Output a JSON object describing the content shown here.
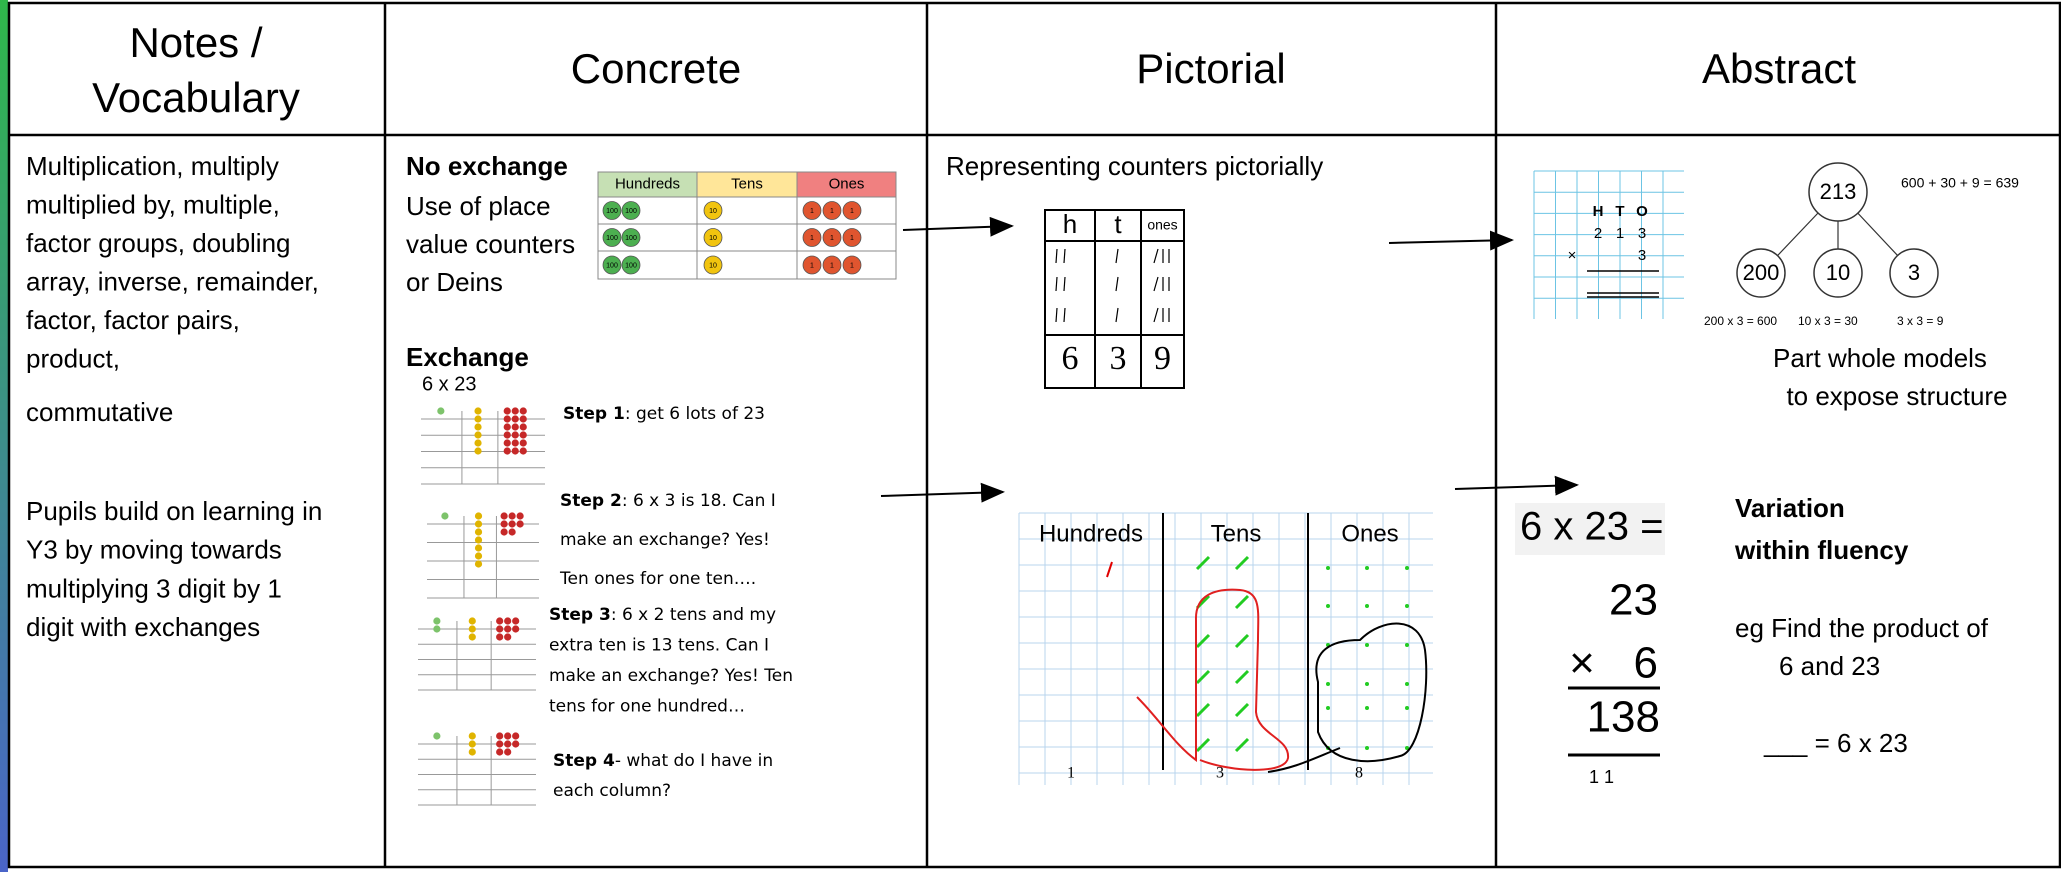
{
  "headers": {
    "notes": [
      "Notes /",
      "Vocabulary"
    ],
    "concrete": "Concrete",
    "pictorial": "Pictorial",
    "abstract": "Abstract"
  },
  "notes": {
    "vocabulary": [
      "Multiplication, multiply",
      "multiplied by, multiple,",
      "factor groups, doubling",
      "array, inverse, remainder,",
      "factor, factor pairs,",
      "product,"
    ],
    "extra": "commutative",
    "description": [
      "Pupils build on learning in",
      "Y3 by moving towards",
      "multiplying 3 digit by 1",
      "digit with exchanges"
    ]
  },
  "concrete": {
    "no_exchange": {
      "title": "No exchange",
      "text": [
        "Use of place",
        "value counters",
        "or Deins"
      ],
      "table": {
        "columns": [
          "Hundreds",
          "Tens",
          "Ones"
        ],
        "counters": [
          "100",
          "10",
          "1"
        ]
      }
    },
    "exchange": {
      "title": "Exchange",
      "calculation": "6 x 23",
      "steps": [
        {
          "label": "Step 1",
          "lines": [
            ": get 6 lots of 23"
          ]
        },
        {
          "label": "Step 2",
          "lines": [
            ": 6 x 3 is 18. Can I",
            "make an exchange? Yes!",
            "Ten ones for one ten…."
          ]
        },
        {
          "label": "Step 3",
          "lines": [
            ": 6 x 2 tens and my",
            "extra ten is 13 tens. Can I",
            "make an exchange? Yes! Ten",
            "tens for one hundred…"
          ]
        },
        {
          "label": "Step 4",
          "lines": [
            "- what do I have in",
            "each column?"
          ]
        }
      ]
    }
  },
  "pictorial": {
    "title": "Representing counters pictorially",
    "table": {
      "columns": [
        "h",
        "t",
        "ones"
      ],
      "totals": [
        "6",
        "3",
        "9"
      ]
    },
    "chart": {
      "columns": [
        "Hundreds",
        "Tens",
        "Ones"
      ],
      "totals": [
        "1",
        "3",
        "8"
      ]
    }
  },
  "abstract": {
    "column_method": {
      "headers": [
        "H",
        "T",
        "O"
      ],
      "digits": [
        "2",
        "1",
        "3"
      ],
      "sign": "×",
      "multiplier": "3"
    },
    "part_whole": {
      "whole": "213",
      "parts": [
        "200",
        "10",
        "3"
      ],
      "sum": "600 + 30 + 9 = 639",
      "products": [
        "200 x 3 = 600",
        "10 x 3 = 30",
        "3 x 3 = 9"
      ],
      "caption": [
        "Part whole models",
        "to expose structure"
      ]
    },
    "written": {
      "question": "6 x 23 =",
      "top": "23",
      "sign": "×",
      "multiplier": "6",
      "answer": "138",
      "carries": "1 1"
    },
    "variation": {
      "title": [
        "Variation",
        "within fluency"
      ],
      "example": [
        "eg Find the product of",
        "6 and 23"
      ],
      "blank": "___ = 6 x 23"
    }
  }
}
